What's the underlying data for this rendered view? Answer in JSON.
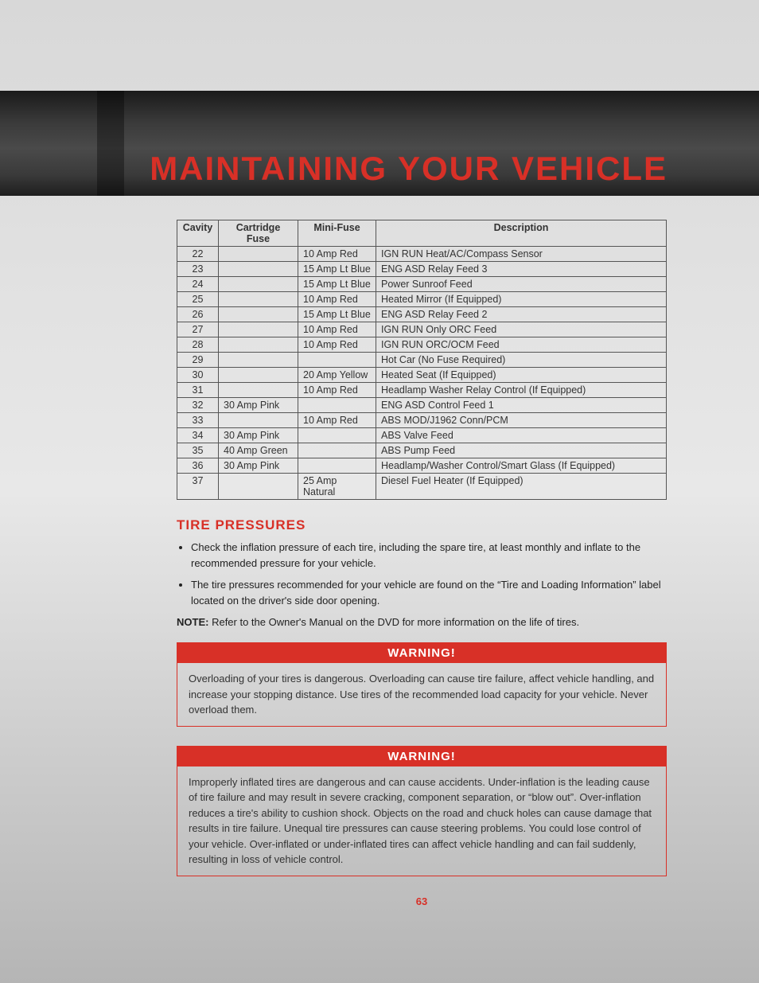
{
  "header": {
    "title": "MAINTAINING YOUR VEHICLE"
  },
  "fuse_table": {
    "columns": [
      "Cavity",
      "Cartridge Fuse",
      "Mini-Fuse",
      "Description"
    ],
    "rows": [
      {
        "cavity": "22",
        "cart": "",
        "mini": "10 Amp Red",
        "desc": "IGN RUN Heat/AC/Compass Sensor"
      },
      {
        "cavity": "23",
        "cart": "",
        "mini": "15 Amp Lt Blue",
        "desc": "ENG ASD Relay Feed 3"
      },
      {
        "cavity": "24",
        "cart": "",
        "mini": "15 Amp Lt Blue",
        "desc": "Power Sunroof Feed"
      },
      {
        "cavity": "25",
        "cart": "",
        "mini": "10 Amp Red",
        "desc": "Heated Mirror (If Equipped)"
      },
      {
        "cavity": "26",
        "cart": "",
        "mini": "15 Amp Lt Blue",
        "desc": "ENG ASD Relay Feed 2"
      },
      {
        "cavity": "27",
        "cart": "",
        "mini": "10 Amp Red",
        "desc": "IGN RUN Only ORC Feed"
      },
      {
        "cavity": "28",
        "cart": "",
        "mini": "10 Amp Red",
        "desc": "IGN RUN ORC/OCM Feed"
      },
      {
        "cavity": "29",
        "cart": "",
        "mini": "",
        "desc": "Hot Car (No Fuse Required)"
      },
      {
        "cavity": "30",
        "cart": "",
        "mini": "20 Amp Yellow",
        "desc": "Heated Seat (If Equipped)"
      },
      {
        "cavity": "31",
        "cart": "",
        "mini": "10 Amp Red",
        "desc": "Headlamp Washer Relay Control (If Equipped)"
      },
      {
        "cavity": "32",
        "cart": "30 Amp Pink",
        "mini": "",
        "desc": "ENG ASD Control Feed 1"
      },
      {
        "cavity": "33",
        "cart": "",
        "mini": "10 Amp Red",
        "desc": "ABS MOD/J1962 Conn/PCM"
      },
      {
        "cavity": "34",
        "cart": "30 Amp Pink",
        "mini": "",
        "desc": "ABS Valve Feed"
      },
      {
        "cavity": "35",
        "cart": "40 Amp Green",
        "mini": "",
        "desc": "ABS Pump Feed"
      },
      {
        "cavity": "36",
        "cart": "30 Amp Pink",
        "mini": "",
        "desc": "Headlamp/Washer Control/Smart Glass (If Equipped)"
      },
      {
        "cavity": "37",
        "cart": "",
        "mini": "25 Amp Natural",
        "desc": "Diesel Fuel Heater (If Equipped)"
      }
    ]
  },
  "tire": {
    "heading": "TIRE PRESSURES",
    "bullets": [
      "Check the inflation pressure of each tire, including the spare tire, at least monthly and inflate to the recommended pressure for your vehicle.",
      "The tire pressures recommended for your vehicle are found on the “Tire and Loading Information” label located on the driver's side door opening."
    ],
    "note_label": "NOTE:",
    "note_text": "Refer to the Owner's Manual on the DVD for more information on the life of tires."
  },
  "warnings": [
    {
      "title": "WARNING!",
      "body": "Overloading of your tires is dangerous. Overloading can cause tire failure, affect vehicle handling, and increase your stopping distance. Use tires of the recommended load capacity for your vehicle. Never overload them."
    },
    {
      "title": "WARNING!",
      "body": "Improperly inflated tires are dangerous and can cause accidents. Under-inflation is the leading cause of tire failure and may result in severe cracking, component separation, or “blow out”. Over-inflation reduces a tire's ability to cushion shock. Objects on the road and chuck holes can cause damage that results in tire failure. Unequal tire pressures can cause steering problems. You could lose control of your vehicle. Over-inflated or under-inflated tires can affect vehicle handling and can fail suddenly, resulting in loss of vehicle control."
    }
  ],
  "page_number": "63"
}
